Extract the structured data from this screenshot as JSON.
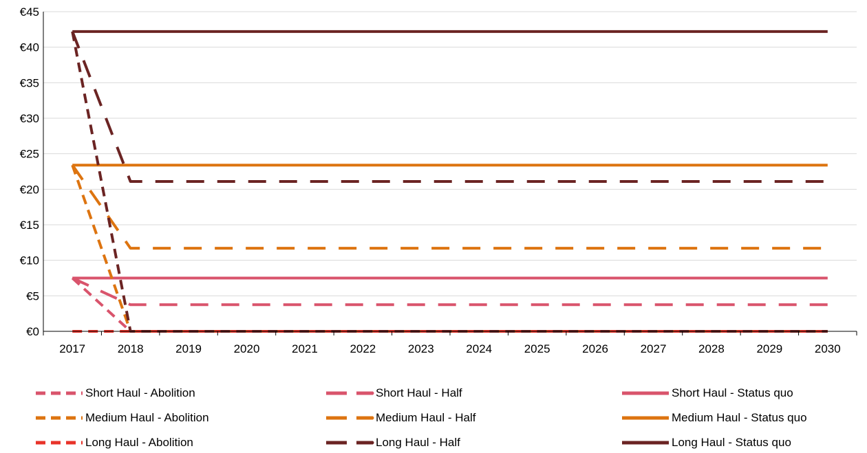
{
  "chart_data": {
    "type": "line",
    "title": "",
    "xlabel": "",
    "ylabel": "",
    "x": [
      "2017",
      "2018",
      "2019",
      "2020",
      "2021",
      "2022",
      "2023",
      "2024",
      "2025",
      "2026",
      "2027",
      "2028",
      "2029",
      "2030"
    ],
    "ylim": [
      0,
      45
    ],
    "yticks": [
      0,
      5,
      10,
      15,
      20,
      25,
      30,
      35,
      40,
      45
    ],
    "ytick_labels": [
      "€0",
      "€5",
      "€10",
      "€15",
      "€20",
      "€25",
      "€30",
      "€35",
      "€40",
      "€45"
    ],
    "grid": true,
    "legend_position": "bottom",
    "series": [
      {
        "name": "Short Haul - Abolition",
        "style": "dashed",
        "color": "#d9546c",
        "values": [
          7.5,
          0,
          0,
          0,
          0,
          0,
          0,
          0,
          0,
          0,
          0,
          0,
          0,
          0
        ]
      },
      {
        "name": "Short Haul - Half",
        "style": "long-dash",
        "color": "#d9546c",
        "values": [
          7.5,
          3.75,
          3.75,
          3.75,
          3.75,
          3.75,
          3.75,
          3.75,
          3.75,
          3.75,
          3.75,
          3.75,
          3.75,
          3.75
        ]
      },
      {
        "name": "Short Haul - Status quo",
        "style": "solid",
        "color": "#d9546c",
        "values": [
          7.5,
          7.5,
          7.5,
          7.5,
          7.5,
          7.5,
          7.5,
          7.5,
          7.5,
          7.5,
          7.5,
          7.5,
          7.5,
          7.5
        ]
      },
      {
        "name": "Medium Haul - Abolition",
        "style": "dashed",
        "color": "#dd7410",
        "values": [
          23.4,
          0,
          0,
          0,
          0,
          0,
          0,
          0,
          0,
          0,
          0,
          0,
          0,
          0
        ]
      },
      {
        "name": "Medium Haul - Half",
        "style": "long-dash",
        "color": "#dd7410",
        "values": [
          23.4,
          11.7,
          11.7,
          11.7,
          11.7,
          11.7,
          11.7,
          11.7,
          11.7,
          11.7,
          11.7,
          11.7,
          11.7,
          11.7
        ]
      },
      {
        "name": "Medium Haul - Status quo",
        "style": "solid",
        "color": "#dd7410",
        "values": [
          23.4,
          23.4,
          23.4,
          23.4,
          23.4,
          23.4,
          23.4,
          23.4,
          23.4,
          23.4,
          23.4,
          23.4,
          23.4,
          23.4
        ]
      },
      {
        "name": "Long Haul - Abolition",
        "style": "dashed",
        "color": "#e8332a",
        "values": [
          0,
          0,
          0,
          0,
          0,
          0,
          0,
          0,
          0,
          0,
          0,
          0,
          0,
          0
        ]
      },
      {
        "name": "Long Haul - Half",
        "style": "long-dash",
        "color": "#6b2423",
        "values": [
          42.2,
          21.1,
          21.1,
          21.1,
          21.1,
          21.1,
          21.1,
          21.1,
          21.1,
          21.1,
          21.1,
          21.1,
          21.1,
          21.1
        ]
      },
      {
        "name": "Long Haul - Status quo",
        "style": "solid",
        "color": "#6b2423",
        "values": [
          42.2,
          42.2,
          42.2,
          42.2,
          42.2,
          42.2,
          42.2,
          42.2,
          42.2,
          42.2,
          42.2,
          42.2,
          42.2,
          42.2
        ]
      },
      {
        "name": "",
        "style": "dashed",
        "color": "#6b2423",
        "in_legend": false,
        "values": [
          42.2,
          0,
          0,
          0,
          0,
          0,
          0,
          0,
          0,
          0,
          0,
          0,
          0,
          0
        ]
      }
    ]
  }
}
